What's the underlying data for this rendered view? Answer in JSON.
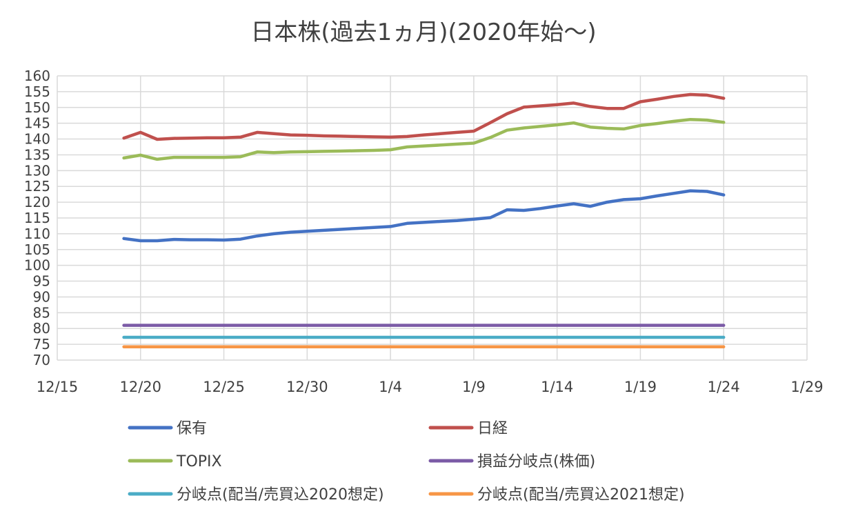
{
  "chart_data": {
    "type": "line",
    "title": "日本株(過去1ヵ月)(2020年始〜)",
    "xlabel": "",
    "ylabel": "",
    "xlim": [
      "12/15",
      "1/29"
    ],
    "ylim": [
      70,
      160
    ],
    "y_tick_step": 5,
    "x_ticks": [
      "12/15",
      "12/20",
      "12/25",
      "12/30",
      "1/4",
      "1/9",
      "1/14",
      "1/19",
      "1/24",
      "1/29"
    ],
    "grid": true,
    "legend_position": "bottom",
    "x": [
      "12/19",
      "12/20",
      "12/21",
      "12/22",
      "12/23",
      "12/24",
      "12/25",
      "12/26",
      "12/27",
      "12/28",
      "12/29",
      "12/30",
      "12/31",
      "1/1",
      "1/2",
      "1/3",
      "1/4",
      "1/5",
      "1/6",
      "1/7",
      "1/8",
      "1/9",
      "1/10",
      "1/11",
      "1/12",
      "1/13",
      "1/14",
      "1/15",
      "1/16",
      "1/17",
      "1/18",
      "1/19",
      "1/20",
      "1/21",
      "1/22",
      "1/23",
      "1/24"
    ],
    "series": [
      {
        "name": "保有",
        "color": "#4472C4",
        "values": [
          108.5,
          107.8,
          107.8,
          108.2,
          108.1,
          108.1,
          108.0,
          108.3,
          109.3,
          110.0,
          110.5,
          110.8,
          111.1,
          111.4,
          111.7,
          112.0,
          112.3,
          113.3,
          113.6,
          113.9,
          114.2,
          114.6,
          115.1,
          117.6,
          117.4,
          118.0,
          118.8,
          119.5,
          118.7,
          120.0,
          120.8,
          121.1,
          122.0,
          122.8,
          123.6,
          123.4,
          122.3
        ]
      },
      {
        "name": "日経",
        "color": "#C0504D",
        "values": [
          140.3,
          142.1,
          139.9,
          140.2,
          140.3,
          140.4,
          140.4,
          140.6,
          142.1,
          141.7,
          141.3,
          141.2,
          141.0,
          140.9,
          140.8,
          140.7,
          140.6,
          140.8,
          141.3,
          141.7,
          142.1,
          142.5,
          145.2,
          148.0,
          150.1,
          150.5,
          150.9,
          151.4,
          150.3,
          149.7,
          149.7,
          151.8,
          152.6,
          153.5,
          154.1,
          153.9,
          152.9
        ]
      },
      {
        "name": "TOPIX",
        "color": "#9BBB59",
        "values": [
          134.0,
          134.9,
          133.6,
          134.2,
          134.2,
          134.2,
          134.2,
          134.4,
          135.9,
          135.7,
          135.9,
          136.0,
          136.1,
          136.2,
          136.3,
          136.4,
          136.6,
          137.5,
          137.8,
          138.1,
          138.4,
          138.7,
          140.5,
          142.8,
          143.5,
          144.0,
          144.5,
          145.1,
          143.8,
          143.4,
          143.2,
          144.3,
          144.9,
          145.6,
          146.2,
          146.0,
          145.3
        ]
      },
      {
        "name": "損益分岐点(株価)",
        "color": "#7B5BA6",
        "values": [
          81,
          81,
          81,
          81,
          81,
          81,
          81,
          81,
          81,
          81,
          81,
          81,
          81,
          81,
          81,
          81,
          81,
          81,
          81,
          81,
          81,
          81,
          81,
          81,
          81,
          81,
          81,
          81,
          81,
          81,
          81,
          81,
          81,
          81,
          81,
          81,
          81
        ]
      },
      {
        "name": "分岐点(配当/売買込2020想定)",
        "color": "#4BACC6",
        "values": [
          77.2,
          77.2,
          77.2,
          77.2,
          77.2,
          77.2,
          77.2,
          77.2,
          77.2,
          77.2,
          77.2,
          77.2,
          77.2,
          77.2,
          77.2,
          77.2,
          77.2,
          77.2,
          77.2,
          77.2,
          77.2,
          77.2,
          77.2,
          77.2,
          77.2,
          77.2,
          77.2,
          77.2,
          77.2,
          77.2,
          77.2,
          77.2,
          77.2,
          77.2,
          77.2,
          77.2,
          77.2
        ]
      },
      {
        "name": "分岐点(配当/売買込2021想定)",
        "color": "#F79646",
        "values": [
          74.2,
          74.2,
          74.2,
          74.2,
          74.2,
          74.2,
          74.2,
          74.2,
          74.2,
          74.2,
          74.2,
          74.2,
          74.2,
          74.2,
          74.2,
          74.2,
          74.2,
          74.2,
          74.2,
          74.2,
          74.2,
          74.2,
          74.2,
          74.2,
          74.2,
          74.2,
          74.2,
          74.2,
          74.2,
          74.2,
          74.2,
          74.2,
          74.2,
          74.2,
          74.2,
          74.2,
          74.2
        ]
      }
    ]
  }
}
